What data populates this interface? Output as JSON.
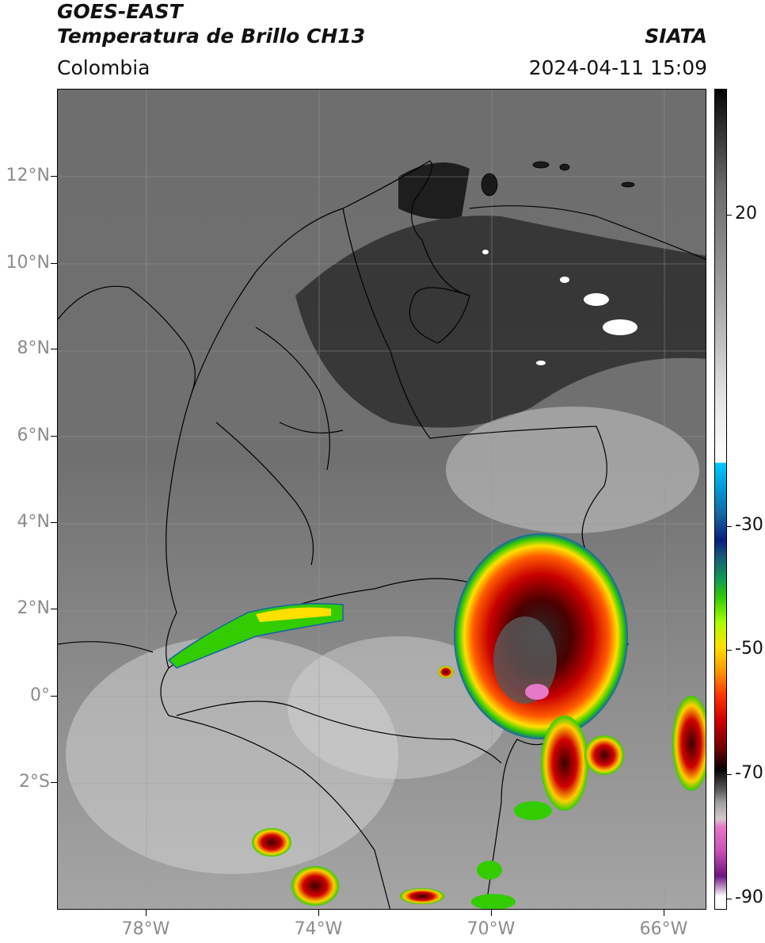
{
  "header": {
    "satellite": "GOES-EAST",
    "product": "Temperatura de Brillo CH13",
    "region": "Colombia",
    "agency": "SIATA",
    "datetime": "2024-04-11 15:09"
  },
  "map": {
    "lat_labels": [
      "12°N",
      "10°N",
      "8°N",
      "6°N",
      "4°N",
      "2°N",
      "0°",
      "2°S"
    ],
    "lon_labels": [
      "78°W",
      "74°W",
      "70°W",
      "66°W"
    ]
  },
  "colorbar": {
    "ticks": [
      "20",
      "-30",
      "-50",
      "-70",
      "-90"
    ]
  },
  "colors": {
    "cold_cloud_red": "#d20000",
    "cold_cloud_green": "#33cc00",
    "cold_cloud_yellow": "#ffe000",
    "coldest_magenta": "#e678c8"
  }
}
